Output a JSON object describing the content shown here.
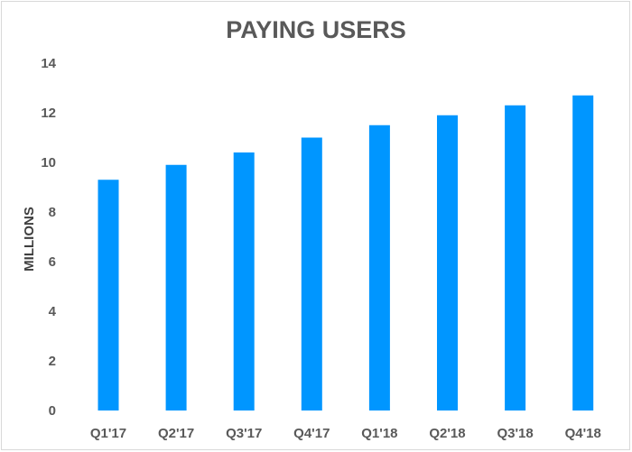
{
  "chart_data": {
    "type": "bar",
    "title": "PAYING USERS",
    "xlabel": "",
    "ylabel": "MILLIONS",
    "categories": [
      "Q1'17",
      "Q2'17",
      "Q3'17",
      "Q4'17",
      "Q1'18",
      "Q2'18",
      "Q3'18",
      "Q4'18"
    ],
    "values": [
      9.3,
      9.9,
      10.4,
      11.0,
      11.5,
      11.9,
      12.3,
      12.7
    ],
    "ylim": [
      0,
      14
    ],
    "yticks": [
      0,
      2,
      4,
      6,
      8,
      10,
      12,
      14
    ],
    "grid": false,
    "legend": "none",
    "bar_color": "#0096FF"
  }
}
